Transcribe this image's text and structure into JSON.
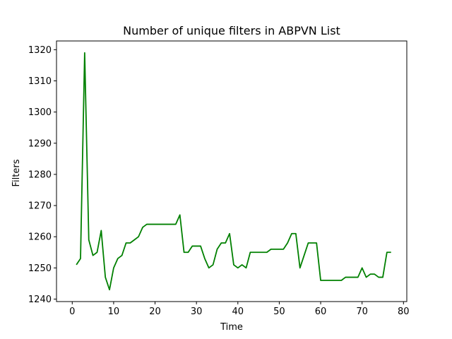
{
  "chart_data": {
    "type": "line",
    "title": "Number of unique filters in ABPVN List",
    "xlabel": "Time",
    "ylabel": "Filters",
    "xlim": [
      -3.8,
      80.8
    ],
    "ylim": [
      1239.2,
      1322.8
    ],
    "xticks": [
      0,
      10,
      20,
      30,
      40,
      50,
      60,
      70,
      80
    ],
    "yticks": [
      1240,
      1250,
      1260,
      1270,
      1280,
      1290,
      1300,
      1310,
      1320
    ],
    "grid": false,
    "series": [
      {
        "color": "#008000",
        "x": [
          1,
          2,
          3,
          4,
          5,
          6,
          7,
          8,
          9,
          10,
          11,
          12,
          13,
          14,
          15,
          16,
          17,
          18,
          19,
          20,
          21,
          22,
          23,
          24,
          25,
          26,
          27,
          28,
          29,
          30,
          31,
          32,
          33,
          34,
          35,
          36,
          37,
          38,
          39,
          40,
          41,
          42,
          43,
          44,
          45,
          46,
          47,
          48,
          49,
          50,
          51,
          52,
          53,
          54,
          55,
          56,
          57,
          58,
          59,
          60,
          61,
          62,
          63,
          64,
          65,
          66,
          67,
          68,
          69,
          70,
          71,
          72,
          73,
          74,
          75,
          76,
          77
        ],
        "y": [
          1251,
          1253,
          1319,
          1259,
          1254,
          1255,
          1262,
          1247,
          1243,
          1250,
          1253,
          1254,
          1258,
          1258,
          1259,
          1260,
          1263,
          1264,
          1264,
          1264,
          1264,
          1264,
          1264,
          1264,
          1264,
          1267,
          1255,
          1255,
          1257,
          1257,
          1257,
          1253,
          1250,
          1251,
          1256,
          1258,
          1258,
          1261,
          1251,
          1250,
          1251,
          1250,
          1255,
          1255,
          1255,
          1255,
          1255,
          1256,
          1256,
          1256,
          1256,
          1258,
          1261,
          1261,
          1250,
          1254,
          1258,
          1258,
          1258,
          1246,
          1246,
          1246,
          1246,
          1246,
          1246,
          1247,
          1247,
          1247,
          1247,
          1250,
          1247,
          1248,
          1248,
          1247,
          1247,
          1255,
          1255
        ]
      }
    ]
  }
}
